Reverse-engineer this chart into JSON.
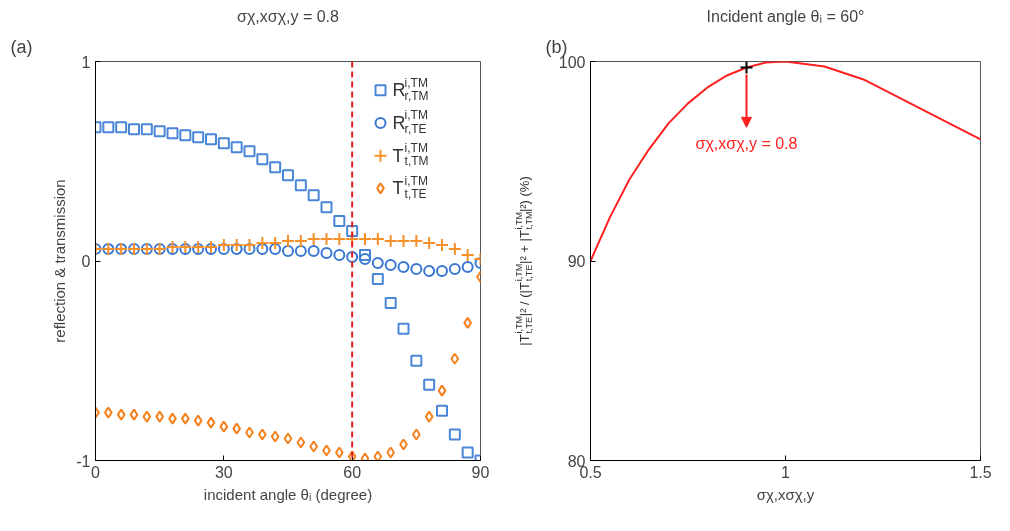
{
  "chart_data": [
    {
      "type": "scatter",
      "title": "σχ,xσχ,y = 0.8",
      "xlabel": "incident angle θᵢ (degree)",
      "ylabel": "reflection & transmission",
      "annotations": [
        "(a)"
      ],
      "x": [
        0,
        3,
        6,
        9,
        12,
        15,
        18,
        21,
        24,
        27,
        30,
        33,
        36,
        39,
        42,
        45,
        48,
        51,
        54,
        57,
        60,
        63,
        66,
        69,
        72,
        75,
        78,
        81,
        84,
        87,
        90
      ],
      "series": [
        {
          "name": "R$^{i,TM}$$_{r,TM}$",
          "color": "#4a86d8",
          "marker": "square",
          "values": [
            0.67,
            0.67,
            0.67,
            0.66,
            0.66,
            0.65,
            0.64,
            0.63,
            0.62,
            0.61,
            0.59,
            0.57,
            0.55,
            0.51,
            0.47,
            0.43,
            0.38,
            0.33,
            0.27,
            0.2,
            0.15,
            0.03,
            -0.09,
            -0.21,
            -0.34,
            -0.5,
            -0.62,
            -0.75,
            -0.87,
            -0.96,
            -1.0
          ]
        },
        {
          "name": "R$^{i,TM}$$_{r,TE}$",
          "color": "#3a78d4",
          "marker": "circle",
          "values": [
            0.06,
            0.06,
            0.06,
            0.06,
            0.06,
            0.06,
            0.06,
            0.06,
            0.06,
            0.06,
            0.06,
            0.06,
            0.06,
            0.06,
            0.06,
            0.05,
            0.05,
            0.05,
            0.04,
            0.03,
            0.02,
            0.01,
            -0.01,
            -0.02,
            -0.03,
            -0.04,
            -0.05,
            -0.05,
            -0.04,
            -0.03,
            -0.01
          ]
        },
        {
          "name": "T$^{i,TM}$$_{t,TM}$",
          "color": "#f5902a",
          "marker": "cross",
          "values": [
            0.06,
            0.06,
            0.06,
            0.06,
            0.06,
            0.06,
            0.07,
            0.07,
            0.07,
            0.07,
            0.08,
            0.08,
            0.08,
            0.09,
            0.09,
            0.1,
            0.1,
            0.11,
            0.11,
            0.11,
            0.11,
            0.11,
            0.11,
            0.1,
            0.1,
            0.1,
            0.09,
            0.08,
            0.06,
            0.03,
            0.01
          ]
        },
        {
          "name": "T$^{i,TM}$$_{t,TE}$",
          "color": "#f5821f",
          "marker": "diamond",
          "values": [
            -0.76,
            -0.76,
            -0.77,
            -0.77,
            -0.78,
            -0.78,
            -0.79,
            -0.79,
            -0.8,
            -0.81,
            -0.83,
            -0.84,
            -0.86,
            -0.87,
            -0.88,
            -0.89,
            -0.91,
            -0.93,
            -0.95,
            -0.96,
            -0.98,
            -0.99,
            -0.98,
            -0.96,
            -0.92,
            -0.87,
            -0.78,
            -0.65,
            -0.49,
            -0.31,
            -0.08
          ]
        }
      ],
      "xlim": [
        0,
        90
      ],
      "ylim": [
        -1,
        1
      ],
      "xticks": [
        0,
        30,
        60,
        90
      ],
      "yticks": [
        -1,
        0,
        1
      ],
      "ref_lines": [
        {
          "axis": "x",
          "value": 60,
          "color": "#e02020",
          "line_style": "dashed"
        }
      ],
      "grid": false,
      "legend": "top right"
    },
    {
      "type": "line",
      "title": "Incident angle θᵢ = 60°",
      "xlabel": "σχ,xσχ,y",
      "ylabel": "|T$_{t,TE}$$^{i,TM}$|² / (|T$_{t,TE}$$^{i,TM}$|² + |T$_{t,TM}$$^{i,TM}$|²) (%)",
      "annotations": [
        "(b)",
        {
          "text": "σχ,xσχ,y = 0.8",
          "x": 0.9,
          "y": 99.7
        }
      ],
      "series": [
        {
          "x": [
            0.5,
            0.55,
            0.6,
            0.65,
            0.7,
            0.75,
            0.8,
            0.85,
            0.9,
            0.95,
            1.0,
            1.1,
            1.2,
            1.3,
            1.4,
            1.5
          ],
          "color": "#ff2020",
          "values": [
            90,
            92.2,
            94.1,
            95.6,
            96.9,
            97.9,
            98.7,
            99.3,
            99.7,
            99.95,
            100,
            99.75,
            99.1,
            98.1,
            97.1,
            96.1
          ]
        },
        {
          "type": "scatter",
          "marker": "cross",
          "x": [
            0.9
          ],
          "color": "#000000",
          "values": [
            99.7
          ]
        }
      ],
      "xlim": [
        0.5,
        1.5
      ],
      "ylim": [
        80,
        100
      ],
      "xticks": [
        0.5,
        1,
        1.5
      ],
      "yticks": [
        80,
        90,
        100
      ],
      "grid": false,
      "legend": false
    }
  ]
}
